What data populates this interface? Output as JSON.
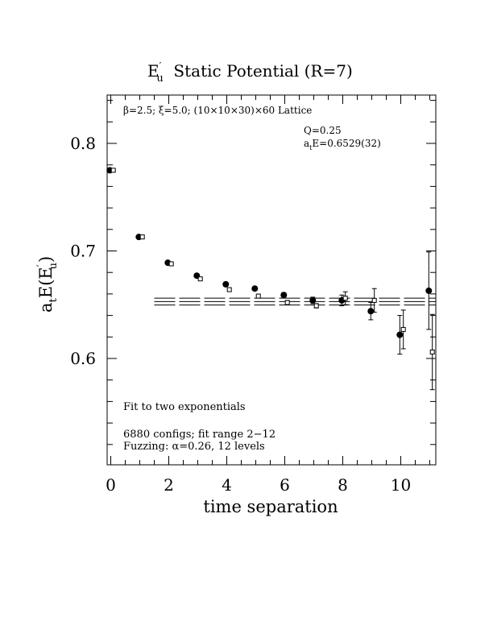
{
  "chart_data": {
    "type": "scatter",
    "title": "E′u  Static Potential (R=7)",
    "title_parts": {
      "main": "E",
      "prime": "′",
      "sub": "u",
      "rest": "  Static Potential (R=7)"
    },
    "xlabel": "time separation",
    "ylabel_parts": {
      "a": "a",
      "a_sub": "t",
      "e": "E(E",
      "prime": "′",
      "sub": "u",
      "close": ")"
    },
    "xlim": [
      -0.1,
      11.1
    ],
    "ylim": [
      0.5,
      0.845
    ],
    "x_ticks": [
      0,
      2,
      4,
      6,
      8,
      10
    ],
    "x_tick_labels": [
      "0",
      "2",
      "4",
      "6",
      "8",
      "10"
    ],
    "y_ticks": [
      0.6,
      0.7,
      0.8
    ],
    "y_tick_labels": [
      "0.6",
      "0.7",
      "0.8"
    ],
    "grid": false,
    "annotations": {
      "lattice": "β=2.5; ξ=5.0; (10×10×30)×60 Lattice",
      "q": "Q=0.25",
      "energy_prefix": "a",
      "energy_sub": "t",
      "energy_rest": "E=0.6529(32)",
      "fit_method": "Fit to two exponentials",
      "configs": "6880 configs; fit range 2−12",
      "fuzzing": "Fuzzing: α=0.26, 12 levels"
    },
    "series": [
      {
        "marker": "filled-circle",
        "x": [
          0,
          1,
          2,
          3,
          4,
          5,
          6,
          7,
          8,
          9,
          10,
          11
        ],
        "y": [
          0.775,
          0.713,
          0.689,
          0.677,
          0.669,
          0.665,
          0.659,
          0.654,
          0.654,
          0.644,
          0.622,
          0.663
        ],
        "err": [
          0.001,
          0.001,
          0.001,
          0.001,
          0.001,
          0.001,
          0.002,
          0.003,
          0.005,
          0.008,
          0.018,
          0.036
        ]
      },
      {
        "marker": "open-square",
        "x": [
          0,
          1,
          2,
          3,
          4,
          5,
          6,
          7,
          8,
          9,
          10,
          11
        ],
        "y": [
          0.775,
          0.713,
          0.688,
          0.674,
          0.664,
          0.658,
          0.652,
          0.649,
          0.656,
          0.654,
          0.627,
          0.606
        ],
        "err": [
          0.001,
          0.001,
          0.001,
          0.001,
          0.001,
          0.001,
          0.002,
          0.002,
          0.006,
          0.011,
          0.018,
          0.035
        ]
      }
    ],
    "fit": {
      "x_range": [
        1.5,
        11.1
      ],
      "value": 0.6529,
      "error": 0.0032
    }
  }
}
